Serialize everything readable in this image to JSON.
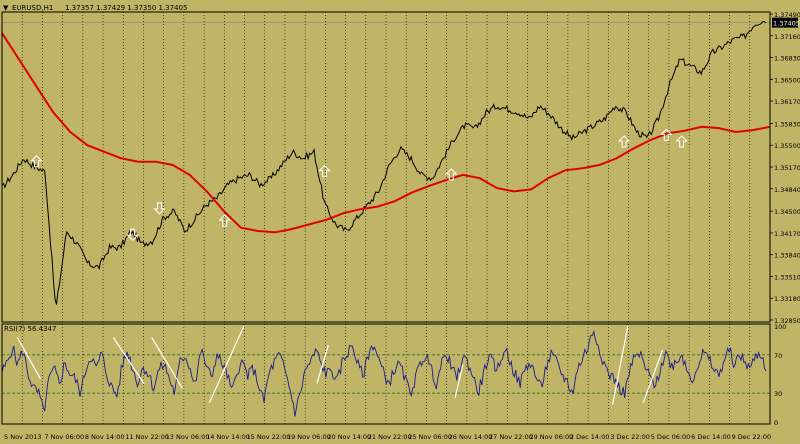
{
  "window": {
    "symbol_label": "EURUSD,H1",
    "ohlc_text": "1.37357 1.37429 1.37350 1.37405",
    "indicator_label": "RSI(7) 56.4347"
  },
  "colors": {
    "background": "#c0b466",
    "price_line": "#000000",
    "ma_line": "#e00000",
    "rsi_line": "#1a1a8c",
    "rsi_levels": "#2f6f2f",
    "trendlines": "#ffffff",
    "arrows": "#ffffff",
    "grid": "#000000"
  },
  "chart_data": [
    {
      "type": "line",
      "panel": "price",
      "title": "EURUSD,H1",
      "y_ticks": [
        "1.37490",
        "1.37160",
        "1.36830",
        "1.36500",
        "1.36170",
        "1.35830",
        "1.35500",
        "1.35170",
        "1.34840",
        "1.34500",
        "1.34170",
        "1.33840",
        "1.33510",
        "1.33180",
        "1.32850"
      ],
      "ylim": [
        1.3285,
        1.3749
      ],
      "current_price": "1.37405",
      "x_ticks": [
        "5 Nov 2013",
        "7 Nov 06:00",
        "8 Nov 14:00",
        "11 Nov 22:00",
        "13 Nov 06:00",
        "14 Nov 14:00",
        "15 Nov 22:00",
        "19 Nov 06:00",
        "20 Nov 14:00",
        "21 Nov 22:00",
        "25 Nov 06:00",
        "26 Nov 14:00",
        "27 Nov 22:00",
        "29 Nov 06:00",
        "2 Dec 14:00",
        "3 Dec 22:00",
        "5 Dec 06:00",
        "6 Dec 14:00",
        "9 Dec 22:00"
      ],
      "series": [
        {
          "values": [
            1.3485,
            1.3505,
            1.353,
            1.3518,
            1.351,
            1.33,
            1.342,
            1.34,
            1.337,
            1.3365,
            1.3395,
            1.3395,
            1.342,
            1.34,
            1.3405,
            1.344,
            1.345,
            1.342,
            1.344,
            1.346,
            1.347,
            1.349,
            1.35,
            1.3505,
            1.349,
            1.35,
            1.352,
            1.354,
            1.353,
            1.354,
            1.346,
            1.343,
            1.342,
            1.344,
            1.346,
            1.348,
            1.352,
            1.3545,
            1.353,
            1.3505,
            1.35,
            1.353,
            1.356,
            1.358,
            1.3575,
            1.36,
            1.361,
            1.3605,
            1.36,
            1.359,
            1.361,
            1.3595,
            1.3575,
            1.356,
            1.357,
            1.358,
            1.359,
            1.361,
            1.36,
            1.357,
            1.356,
            1.359,
            1.364,
            1.368,
            1.367,
            1.366,
            1.369,
            1.37,
            1.371,
            1.3715,
            1.3735,
            1.374
          ]
        },
        {
          "name": "MA",
          "values": [
            1.372,
            1.368,
            1.364,
            1.36,
            1.357,
            1.355,
            1.354,
            1.353,
            1.3525,
            1.3525,
            1.352,
            1.3505,
            1.348,
            1.345,
            1.3425,
            1.342,
            1.3418,
            1.3423,
            1.343,
            1.3437,
            1.3447,
            1.3453,
            1.3457,
            1.3465,
            1.3478,
            1.3488,
            1.3497,
            1.3505,
            1.35,
            1.3485,
            1.348,
            1.3483,
            1.35,
            1.3512,
            1.3515,
            1.352,
            1.353,
            1.3545,
            1.3558,
            1.3568,
            1.3572,
            1.3578,
            1.3576,
            1.357,
            1.3573,
            1.3578
          ]
        }
      ]
    },
    {
      "type": "line",
      "panel": "rsi",
      "title": "RSI(7) 56.4347",
      "y_ticks": [
        "100",
        "70",
        "30",
        "0"
      ],
      "ylim": [
        0,
        100
      ],
      "levels": [
        70,
        30
      ],
      "series": [
        {
          "values": [
            52,
            62,
            78,
            60,
            75,
            50,
            35,
            30,
            10,
            45,
            55,
            40,
            62,
            50,
            45,
            30,
            55,
            70,
            55,
            72,
            50,
            35,
            28,
            60,
            74,
            55,
            40,
            58,
            50,
            35,
            55,
            60,
            45,
            30,
            62,
            70,
            55,
            40,
            75,
            60,
            45,
            70,
            62,
            50,
            30,
            55,
            62,
            48,
            56,
            40,
            20,
            50,
            62,
            70,
            55,
            35,
            10,
            30,
            55,
            62,
            75,
            60,
            50,
            55,
            40,
            62,
            72,
            80,
            60,
            48,
            70,
            82,
            65,
            50,
            40,
            55,
            60,
            45,
            30,
            45,
            62,
            70,
            55,
            40,
            60,
            72,
            55,
            45,
            68,
            62,
            48,
            30,
            50,
            68,
            60,
            55,
            78,
            65,
            50,
            40,
            55,
            62,
            48,
            35,
            58,
            70,
            62,
            50,
            42,
            30,
            55,
            68,
            78,
            96,
            80,
            62,
            50,
            45,
            35,
            30,
            55,
            68,
            70,
            55,
            45,
            38,
            60,
            72,
            58,
            65,
            70,
            52,
            45,
            60,
            72,
            66,
            55,
            48,
            65,
            75,
            60,
            70,
            62,
            56,
            68,
            72,
            56
          ]
        }
      ]
    }
  ]
}
